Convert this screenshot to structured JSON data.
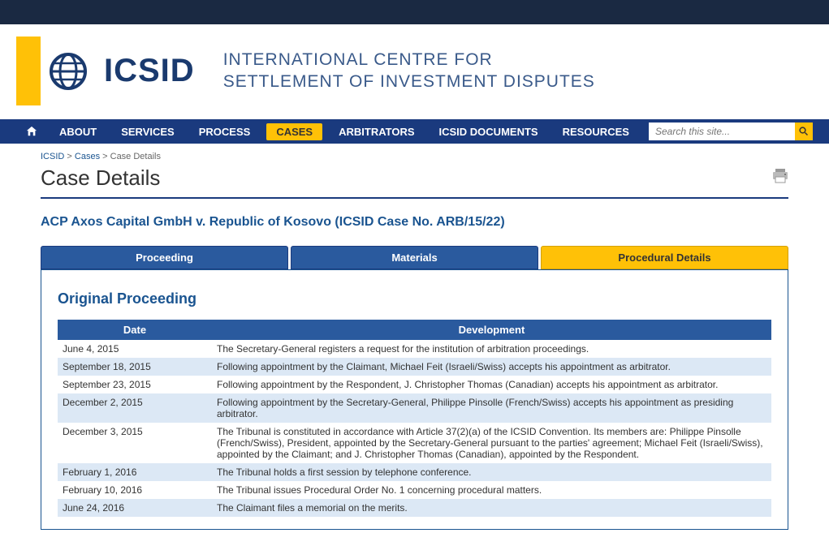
{
  "org": {
    "logo_text": "ICSID",
    "name_line1": "INTERNATIONAL CENTRE FOR",
    "name_line2": "SETTLEMENT OF INVESTMENT DISPUTES"
  },
  "nav": {
    "items": [
      "ABOUT",
      "SERVICES",
      "PROCESS",
      "CASES",
      "ARBITRATORS",
      "ICSID DOCUMENTS",
      "RESOURCES"
    ],
    "active_index": 3,
    "search_placeholder": "Search this site..."
  },
  "breadcrumb": {
    "root": "ICSID",
    "mid": "Cases",
    "leaf": "Case Details"
  },
  "page_title": "Case Details",
  "case_title": "ACP Axos Capital GmbH v. Republic of Kosovo (ICSID Case No. ARB/15/22)",
  "tabs": {
    "items": [
      "Proceeding",
      "Materials",
      "Procedural Details"
    ],
    "active_index": 2
  },
  "section_title": "Original Proceeding",
  "table": {
    "headers": [
      "Date",
      "Development"
    ],
    "rows": [
      [
        "June 4, 2015",
        "The Secretary-General registers a request for the institution of arbitration proceedings."
      ],
      [
        "September 18, 2015",
        "Following appointment by the Claimant, Michael Feit (Israeli/Swiss) accepts his appointment as arbitrator."
      ],
      [
        "September 23, 2015",
        "Following appointment by the Respondent, J. Christopher Thomas (Canadian) accepts his appointment as arbitrator."
      ],
      [
        "December 2, 2015",
        "Following appointment by the Secretary-General, Philippe Pinsolle (French/Swiss) accepts his appointment as presiding arbitrator."
      ],
      [
        "December 3, 2015",
        "The Tribunal is constituted in accordance with Article 37(2)(a) of the ICSID Convention. Its members are: Philippe Pinsolle (French/Swiss), President, appointed by the Secretary-General pursuant to the parties' agreement; Michael Feit (Israeli/Swiss), appointed by the Claimant; and J. Christopher Thomas (Canadian), appointed by the Respondent."
      ],
      [
        "February 1, 2016",
        "The Tribunal holds a first session by telephone conference."
      ],
      [
        "February 10, 2016",
        "The Tribunal issues Procedural Order No. 1 concerning procedural matters."
      ],
      [
        "June 24, 2016",
        "The Claimant files a memorial on the merits."
      ]
    ]
  },
  "colors": {
    "nav_bg": "#1a3a7e",
    "accent_yellow": "#ffc107",
    "link_blue": "#1a5490",
    "table_header": "#2a5a9e",
    "row_stripe": "#dce8f5"
  }
}
